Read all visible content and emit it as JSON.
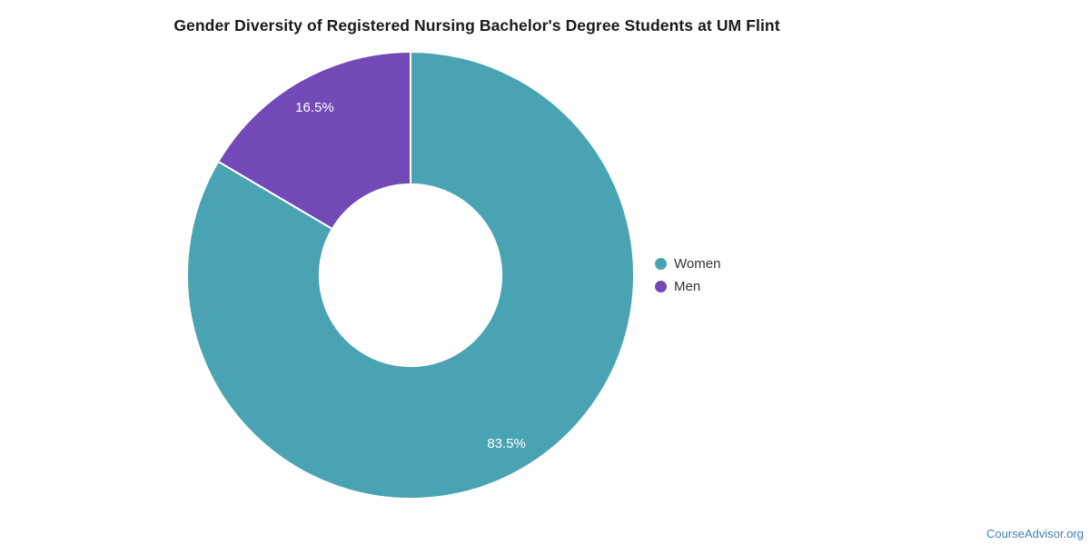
{
  "chart_data": {
    "type": "pie",
    "subtype": "donut",
    "title": "Gender Diversity of Registered Nursing Bachelor's Degree Students at UM Flint",
    "series": [
      {
        "name": "Women",
        "value": 83.5,
        "label": "83.5%",
        "color": "#4AA3B2"
      },
      {
        "name": "Men",
        "value": 16.5,
        "label": "16.5%",
        "color": "#7249B6"
      }
    ],
    "start_angle_deg": 0,
    "direction": "clockwise",
    "inner_radius_ratio": 0.407,
    "label_radius_ratio": 0.866,
    "label_color": "#ffffff",
    "slice_border_color": "#ffffff",
    "legend_position": "right",
    "grid": false
  },
  "footer": {
    "link_text": "CourseAdvisor.org",
    "link_color": "#3F81AD"
  }
}
